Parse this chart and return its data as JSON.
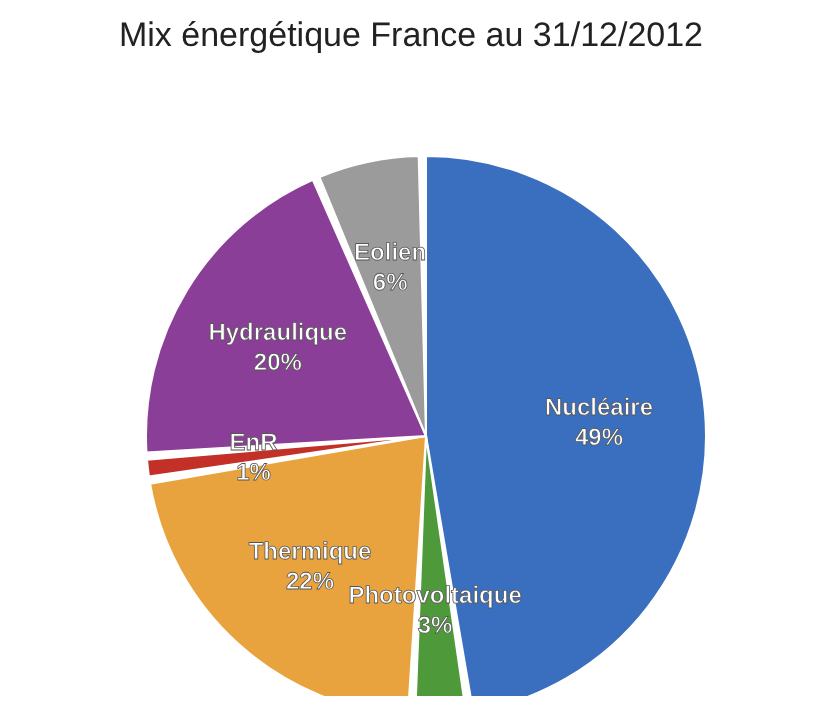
{
  "chart_data": {
    "type": "pie",
    "title": "Mix énergétique France au 31/12/2012",
    "categories": [
      "Nucléaire",
      "Photovoltaique",
      "Thermique",
      "EnR",
      "Hydraulique",
      "Eolien"
    ],
    "values": [
      49,
      3,
      22,
      1,
      20,
      6
    ],
    "value_labels": [
      "49%",
      "3%",
      "22%",
      "1%",
      "20%",
      "6%"
    ],
    "colors": [
      "#3a6fbf",
      "#4e9a3a",
      "#e8a33f",
      "#c23028",
      "#8b3e98",
      "#9b9b9b"
    ]
  }
}
